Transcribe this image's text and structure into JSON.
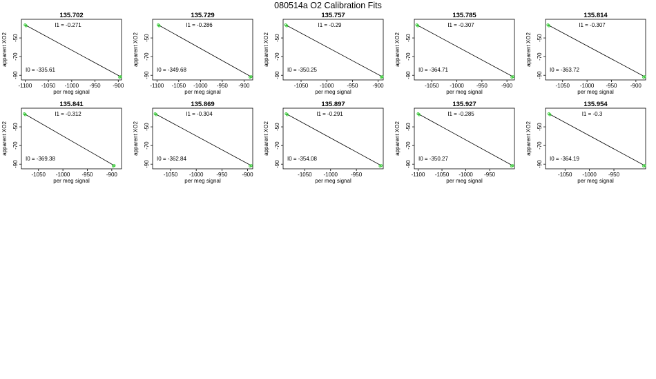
{
  "main_title": "080514a   O2 Calibration Fits",
  "colors": {
    "fit_line": "#000000",
    "point": "#33cc33",
    "frame": "#000000"
  },
  "chart_data": [
    {
      "type": "scatter",
      "title": "135.702",
      "xlabel": "per meg signal",
      "ylabel": "apparent XO2",
      "xlim": [
        -1108,
        -893
      ],
      "ylim": [
        -95,
        -30
      ],
      "xticks": [
        -1100,
        -1050,
        -1000,
        -950,
        -900
      ],
      "yticks": [
        -50,
        -70,
        -90
      ],
      "intercept_label": "I0 =  -335.61",
      "slope_label": "I1 =  -0.271",
      "points": [
        [
          -1100,
          -36.0
        ],
        [
          -1098,
          -37.0
        ],
        [
          -897,
          -92.0
        ],
        [
          -895,
          -91.5
        ]
      ]
    },
    {
      "type": "scatter",
      "title": "135.729",
      "xlabel": "per meg signal",
      "ylabel": "apparent XO2",
      "xlim": [
        -1110,
        -880
      ],
      "ylim": [
        -95,
        -30
      ],
      "xticks": [
        -1100,
        -1050,
        -1000,
        -950,
        -900
      ],
      "yticks": [
        -50,
        -70,
        -90
      ],
      "intercept_label": "I0 =  -349.68",
      "slope_label": "I1 =  -0.286",
      "points": [
        [
          -1097,
          -36.0
        ],
        [
          -1095,
          -37.0
        ],
        [
          -886,
          -92.0
        ],
        [
          -884,
          -91.5
        ]
      ]
    },
    {
      "type": "scatter",
      "title": "135.757",
      "xlabel": "per meg signal",
      "ylabel": "apparent XO2",
      "xlim": [
        -1085,
        -890
      ],
      "ylim": [
        -95,
        -30
      ],
      "xticks": [
        -1050,
        -1000,
        -950,
        -900
      ],
      "yticks": [
        -50,
        -70,
        -90
      ],
      "intercept_label": "I0 =  -350.25",
      "slope_label": "I1 =  -0.29",
      "points": [
        [
          -1080,
          -36.0
        ],
        [
          -1078,
          -37.0
        ],
        [
          -894,
          -92.0
        ],
        [
          -892,
          -91.5
        ]
      ]
    },
    {
      "type": "scatter",
      "title": "135.785",
      "xlabel": "per meg signal",
      "ylabel": "apparent XO2",
      "xlim": [
        -1085,
        -885
      ],
      "ylim": [
        -95,
        -30
      ],
      "xticks": [
        -1050,
        -1000,
        -950,
        -900
      ],
      "yticks": [
        -50,
        -70,
        -90
      ],
      "intercept_label": "I0 =  -364.71",
      "slope_label": "I1 =  -0.307",
      "points": [
        [
          -1080,
          -36.0
        ],
        [
          -1078,
          -37.0
        ],
        [
          -890,
          -92.0
        ],
        [
          -888,
          -91.5
        ]
      ]
    },
    {
      "type": "scatter",
      "title": "135.814",
      "xlabel": "per meg signal",
      "ylabel": "apparent XO2",
      "xlim": [
        -1085,
        -880
      ],
      "ylim": [
        -95,
        -30
      ],
      "xticks": [
        -1050,
        -1000,
        -950,
        -900
      ],
      "yticks": [
        -50,
        -70,
        -90
      ],
      "intercept_label": "I0 =  -363.72",
      "slope_label": "I1 =  -0.307",
      "points": [
        [
          -1080,
          -36.0
        ],
        [
          -1078,
          -37.0
        ],
        [
          -884,
          -92.0
        ],
        [
          -882,
          -91.5
        ]
      ]
    },
    {
      "type": "scatter",
      "title": "135.841",
      "xlabel": "per meg signal",
      "ylabel": "apparent XO2",
      "xlim": [
        -1085,
        -880
      ],
      "ylim": [
        -95,
        -30
      ],
      "xticks": [
        -1050,
        -1000,
        -950,
        -900
      ],
      "yticks": [
        -50,
        -70,
        -90
      ],
      "intercept_label": "I0 =  -369.38",
      "slope_label": "I1 =  -0.312",
      "points": [
        [
          -1079,
          -36.0
        ],
        [
          -1077,
          -37.0
        ],
        [
          -897,
          -92.0
        ],
        [
          -895,
          -91.5
        ]
      ]
    },
    {
      "type": "scatter",
      "title": "135.869",
      "xlabel": "per meg signal",
      "ylabel": "apparent XO2",
      "xlim": [
        -1085,
        -890
      ],
      "ylim": [
        -95,
        -30
      ],
      "xticks": [
        -1050,
        -1000,
        -950,
        -900
      ],
      "yticks": [
        -50,
        -70,
        -90
      ],
      "intercept_label": "I0 =  -362.84",
      "slope_label": "I1 =  -0.304",
      "points": [
        [
          -1080,
          -36.0
        ],
        [
          -1078,
          -37.0
        ],
        [
          -895,
          -92.0
        ],
        [
          -893,
          -91.5
        ]
      ]
    },
    {
      "type": "scatter",
      "title": "135.897",
      "xlabel": "per meg signal",
      "ylabel": "apparent XO2",
      "xlim": [
        -1092,
        -898
      ],
      "ylim": [
        -95,
        -30
      ],
      "xticks": [
        -1050,
        -1000,
        -950
      ],
      "yticks": [
        -50,
        -70,
        -90
      ],
      "intercept_label": "I0 =  -354.08",
      "slope_label": "I1 =  -0.291",
      "points": [
        [
          -1086,
          -36.0
        ],
        [
          -1084,
          -37.0
        ],
        [
          -904,
          -92.0
        ],
        [
          -902,
          -91.5
        ]
      ]
    },
    {
      "type": "scatter",
      "title": "135.927",
      "xlabel": "per meg signal",
      "ylabel": "apparent XO2",
      "xlim": [
        -1108,
        -898
      ],
      "ylim": [
        -95,
        -30
      ],
      "xticks": [
        -1100,
        -1050,
        -1000,
        -950
      ],
      "yticks": [
        -50,
        -70,
        -90
      ],
      "intercept_label": "I0 =  -350.27",
      "slope_label": "I1 =  -0.285",
      "points": [
        [
          -1100,
          -36.0
        ],
        [
          -1098,
          -37.0
        ],
        [
          -904,
          -92.0
        ],
        [
          -902,
          -91.5
        ]
      ]
    },
    {
      "type": "scatter",
      "title": "135.954",
      "xlabel": "per meg signal",
      "ylabel": "apparent XO2",
      "xlim": [
        -1090,
        -885
      ],
      "ylim": [
        -95,
        -30
      ],
      "xticks": [
        -1050,
        -1000,
        -950
      ],
      "yticks": [
        -50,
        -70,
        -90
      ],
      "intercept_label": "I0 =  -364.19",
      "slope_label": "I1 =  -0.3",
      "points": [
        [
          -1083,
          -36.0
        ],
        [
          -1081,
          -37.0
        ],
        [
          -889,
          -92.0
        ],
        [
          -887,
          -91.5
        ]
      ]
    }
  ]
}
